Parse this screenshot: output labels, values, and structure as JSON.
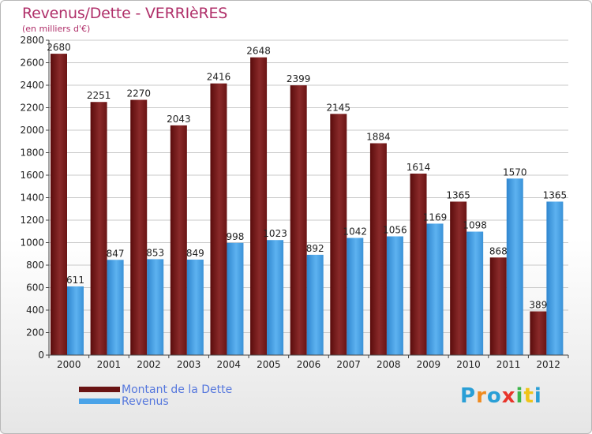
{
  "title": "Revenus/Dette - VERRIèRES",
  "subtitle": "(en milliers d'€)",
  "logo": {
    "letters": [
      "P",
      "r",
      "o",
      "x",
      "i",
      "t",
      "i"
    ],
    "colors": [
      "#2a9fd6",
      "#f08a1e",
      "#2a9fd6",
      "#e8352b",
      "#3cb54a",
      "#f0c419",
      "#2a9fd6"
    ]
  },
  "chart_data": {
    "type": "bar",
    "title": "Revenus/Dette - VERRIèRES",
    "ylabel": "(en milliers d'€)",
    "categories": [
      "2000",
      "2001",
      "2002",
      "2003",
      "2004",
      "2005",
      "2006",
      "2007",
      "2008",
      "2009",
      "2010",
      "2011",
      "2012"
    ],
    "series": [
      {
        "name": "Montant de la Dette",
        "color": "#7a1a1a",
        "values": [
          2680,
          2251,
          2270,
          2043,
          2416,
          2648,
          2399,
          2145,
          1884,
          1614,
          1365,
          868,
          389
        ]
      },
      {
        "name": "Revenus",
        "color": "#4aa3e8",
        "values": [
          611,
          847,
          853,
          849,
          998,
          1023,
          892,
          1042,
          1056,
          1169,
          1098,
          1570,
          1365
        ]
      }
    ],
    "ylim": [
      0,
      2800
    ],
    "yticks": [
      0,
      200,
      400,
      600,
      800,
      1000,
      1200,
      1400,
      1600,
      1800,
      2000,
      2200,
      2400,
      2600,
      2800
    ],
    "grid": true,
    "legend": "bottom-left"
  }
}
